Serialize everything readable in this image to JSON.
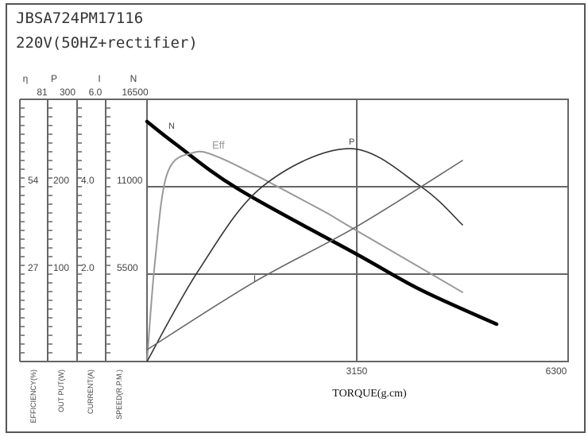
{
  "title": "JBSA724PM17116",
  "subtitle": "220V(50HZ+rectifier)",
  "chart_data": {
    "type": "line",
    "xlabel": "TORQUE(g.cm)",
    "xlim": [
      0,
      6300
    ],
    "x_ticks": [
      "3150",
      "6300"
    ],
    "grid": true,
    "axes": [
      {
        "symbol": "η",
        "top": "81",
        "ticks": [
          "54",
          "27"
        ],
        "label": "EFFICIENCY(%)",
        "range": [
          0,
          81
        ]
      },
      {
        "symbol": "P",
        "top": "300",
        "ticks": [
          "200",
          "100"
        ],
        "label": "OUT PUT(W)",
        "range": [
          0,
          300
        ]
      },
      {
        "symbol": "I",
        "top": "6.0",
        "ticks": [
          "4.0",
          "2.0"
        ],
        "label": "CURRENT(A)",
        "range": [
          0,
          6
        ]
      },
      {
        "symbol": "N",
        "top": "16500",
        "ticks": [
          "11000",
          "5500"
        ],
        "label": "SPEED(R.P.M.)",
        "range": [
          0,
          16500
        ]
      }
    ],
    "series": [
      {
        "name": "N",
        "axis": 3,
        "color": "#000000",
        "x": [
          0,
          441,
          1372,
          3150,
          4116,
          5250
        ],
        "y": [
          15100,
          13650,
          10850,
          6750,
          4500,
          2350
        ]
      },
      {
        "name": "Eff",
        "axis": 0,
        "color": "#999999",
        "x": [
          0,
          119,
          298,
          656,
          1134,
          2565,
          3043,
          4737
        ],
        "y": [
          0,
          30.7,
          57.7,
          64.3,
          62.6,
          47.4,
          41.7,
          21.4
        ]
      },
      {
        "name": "P",
        "axis": 1,
        "color": "#333333",
        "x": [
          0,
          776,
          1730,
          3043,
          4116,
          4737
        ],
        "y": [
          0,
          104.5,
          200,
          243.6,
          200,
          156.4
        ]
      },
      {
        "name": "I",
        "axis": 2,
        "color": "#666666",
        "x": [
          0,
          1611,
          3150,
          4737
        ],
        "y": [
          0.27,
          1.82,
          3.09,
          4.6
        ]
      }
    ]
  }
}
